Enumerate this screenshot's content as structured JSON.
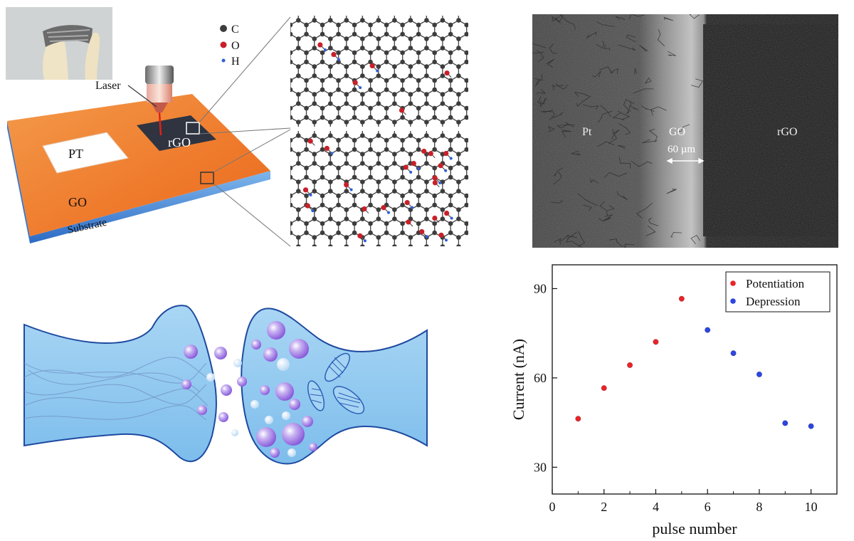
{
  "schematic": {
    "labels": {
      "laser": "Laser",
      "pt": "PT",
      "rgo": "rGO",
      "go": "GO",
      "substrate": "Substrate"
    },
    "legend": [
      {
        "symbol": "C",
        "color": "#3d3d3d"
      },
      {
        "symbol": "O",
        "color": "#c8202a"
      },
      {
        "symbol": "H",
        "color": "#2f5fd8"
      }
    ]
  },
  "sem": {
    "pt": "Pt",
    "go": "GO",
    "rgo": "rGO",
    "scale": "60 µm"
  },
  "chart_data": {
    "type": "scatter",
    "xlabel": "pulse number",
    "ylabel": "Current (nA)",
    "xlim": [
      0,
      11
    ],
    "ylim": [
      21,
      98
    ],
    "xticks": [
      0,
      2,
      4,
      6,
      8,
      10
    ],
    "yticks": [
      30,
      60,
      90
    ],
    "legend_position": "top-right",
    "series": [
      {
        "name": "Potentiation",
        "color": "#e8242a",
        "x": [
          1,
          2,
          3,
          4,
          5
        ],
        "y": [
          46.3,
          56.6,
          64.3,
          72.1,
          86.6
        ]
      },
      {
        "name": "Depression",
        "color": "#2d46e0",
        "x": [
          6,
          7,
          8,
          9,
          10
        ],
        "y": [
          76.1,
          68.3,
          61.2,
          44.8,
          43.8
        ]
      }
    ]
  }
}
